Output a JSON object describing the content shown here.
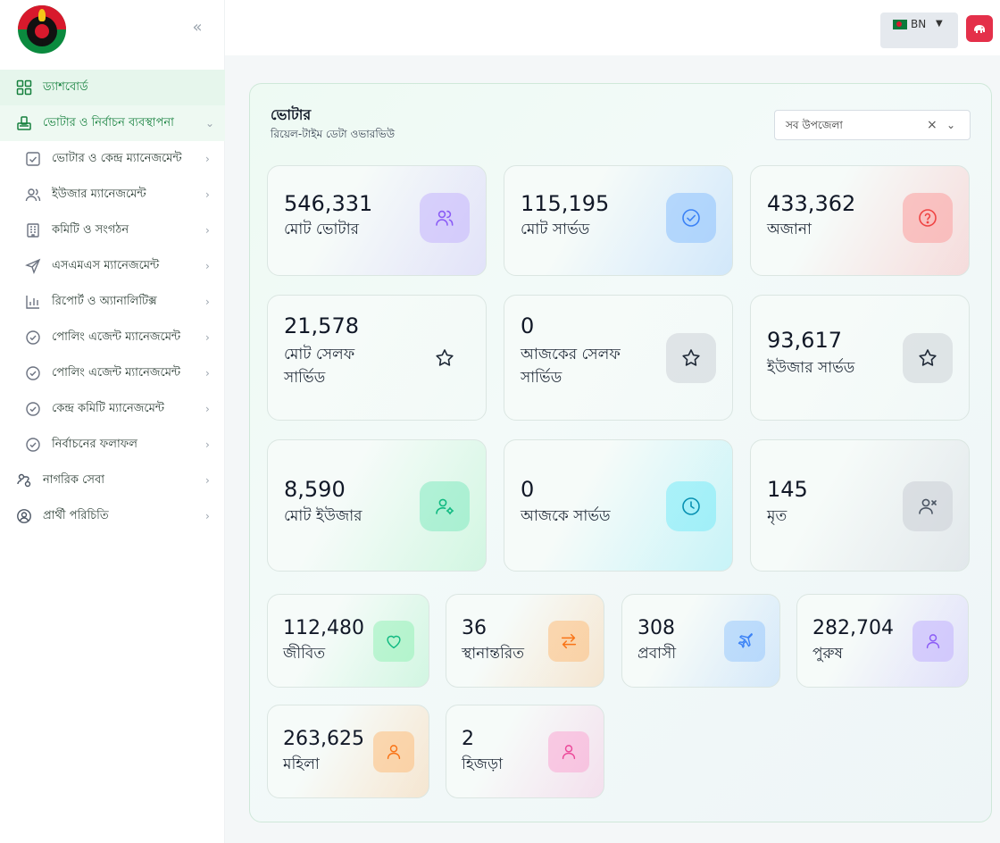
{
  "sidebar": {
    "items": [
      {
        "label": "ড্যাশবোর্ড",
        "icon": "grid-icon"
      },
      {
        "label": "ভোটার ও নির্বাচন ব্যবস্থাপনা",
        "icon": "ballot-icon"
      },
      {
        "label": "ভোটার ও কেন্দ্র ম্যানেজমেন্ট",
        "icon": "checkbox-icon"
      },
      {
        "label": "ইউজার ম্যানেজমেন্ট",
        "icon": "users-icon"
      },
      {
        "label": "কমিটি ও সংগঠন",
        "icon": "building-icon"
      },
      {
        "label": "এসএমএস ম্যানেজমেন্ট",
        "icon": "send-icon"
      },
      {
        "label": "রিপোর্ট ও অ্যানালিটিক্স",
        "icon": "bar-chart-icon"
      },
      {
        "label": "পোলিং এজেন্ট ম্যানেজমেন্ট",
        "icon": "check-circle-icon"
      },
      {
        "label": "পোলিং এজেন্ট ম্যানেজমেন্ট",
        "icon": "check-circle-icon"
      },
      {
        "label": "কেন্দ্র কমিটি ম্যানেজমেন্ট",
        "icon": "check-circle-icon"
      },
      {
        "label": "নির্বাচনের ফলাফল",
        "icon": "check-circle-icon"
      },
      {
        "label": "নাগরিক সেবা",
        "icon": "user-route-icon"
      },
      {
        "label": "প্রার্থী পরিচিতি",
        "icon": "user-circle-icon"
      }
    ]
  },
  "topbar": {
    "lang_code": "BN"
  },
  "panel": {
    "title": "ভোটার",
    "subtitle": "রিয়েল-টাইম ডেটা ওভারভিউ",
    "filter_value": "সব উপজেলা"
  },
  "cards": [
    {
      "value": "546,331",
      "label": "মোট ভোটার",
      "icon": "users-icon",
      "color": "#8b5cf6"
    },
    {
      "value": "115,195",
      "label": "মোট সার্ভড",
      "icon": "check-circle-icon",
      "color": "#3b82f6"
    },
    {
      "value": "433,362",
      "label": "অজানা",
      "icon": "question-circle-icon",
      "color": "#ef4444"
    },
    {
      "value": "21,578",
      "label": "মোট সেলফ সার্ভিড",
      "icon": "star-icon",
      "color": "#1f2937"
    },
    {
      "value": "0",
      "label": "আজকের সেলফ সার্ভিড",
      "icon": "star-icon",
      "color": "#1f2937"
    },
    {
      "value": "93,617",
      "label": "ইউজার সার্ভড",
      "icon": "star-icon",
      "color": "#1f2937"
    },
    {
      "value": "8,590",
      "label": "মোট ইউজার",
      "icon": "user-cog-icon",
      "color": "#10b981"
    },
    {
      "value": "0",
      "label": "আজকে সার্ভড",
      "icon": "clock-icon",
      "color": "#0891b2"
    },
    {
      "value": "145",
      "label": "মৃত",
      "icon": "user-x-icon",
      "color": "#4b5563"
    },
    {
      "value": "112,480",
      "label": "জীবিত",
      "icon": "heart-icon",
      "color": "#10b981"
    },
    {
      "value": "36",
      "label": "স্থানান্তরিত",
      "icon": "transfer-icon",
      "color": "#f97316"
    },
    {
      "value": "308",
      "label": "প্রবাসী",
      "icon": "plane-icon",
      "color": "#3b82f6"
    },
    {
      "value": "282,704",
      "label": "পুরুষ",
      "icon": "user-icon",
      "color": "#8b5cf6"
    },
    {
      "value": "263,625",
      "label": "মহিলা",
      "icon": "user-icon",
      "color": "#f97316"
    },
    {
      "value": "2",
      "label": "হিজড়া",
      "icon": "user-icon",
      "color": "#ec4899"
    }
  ]
}
